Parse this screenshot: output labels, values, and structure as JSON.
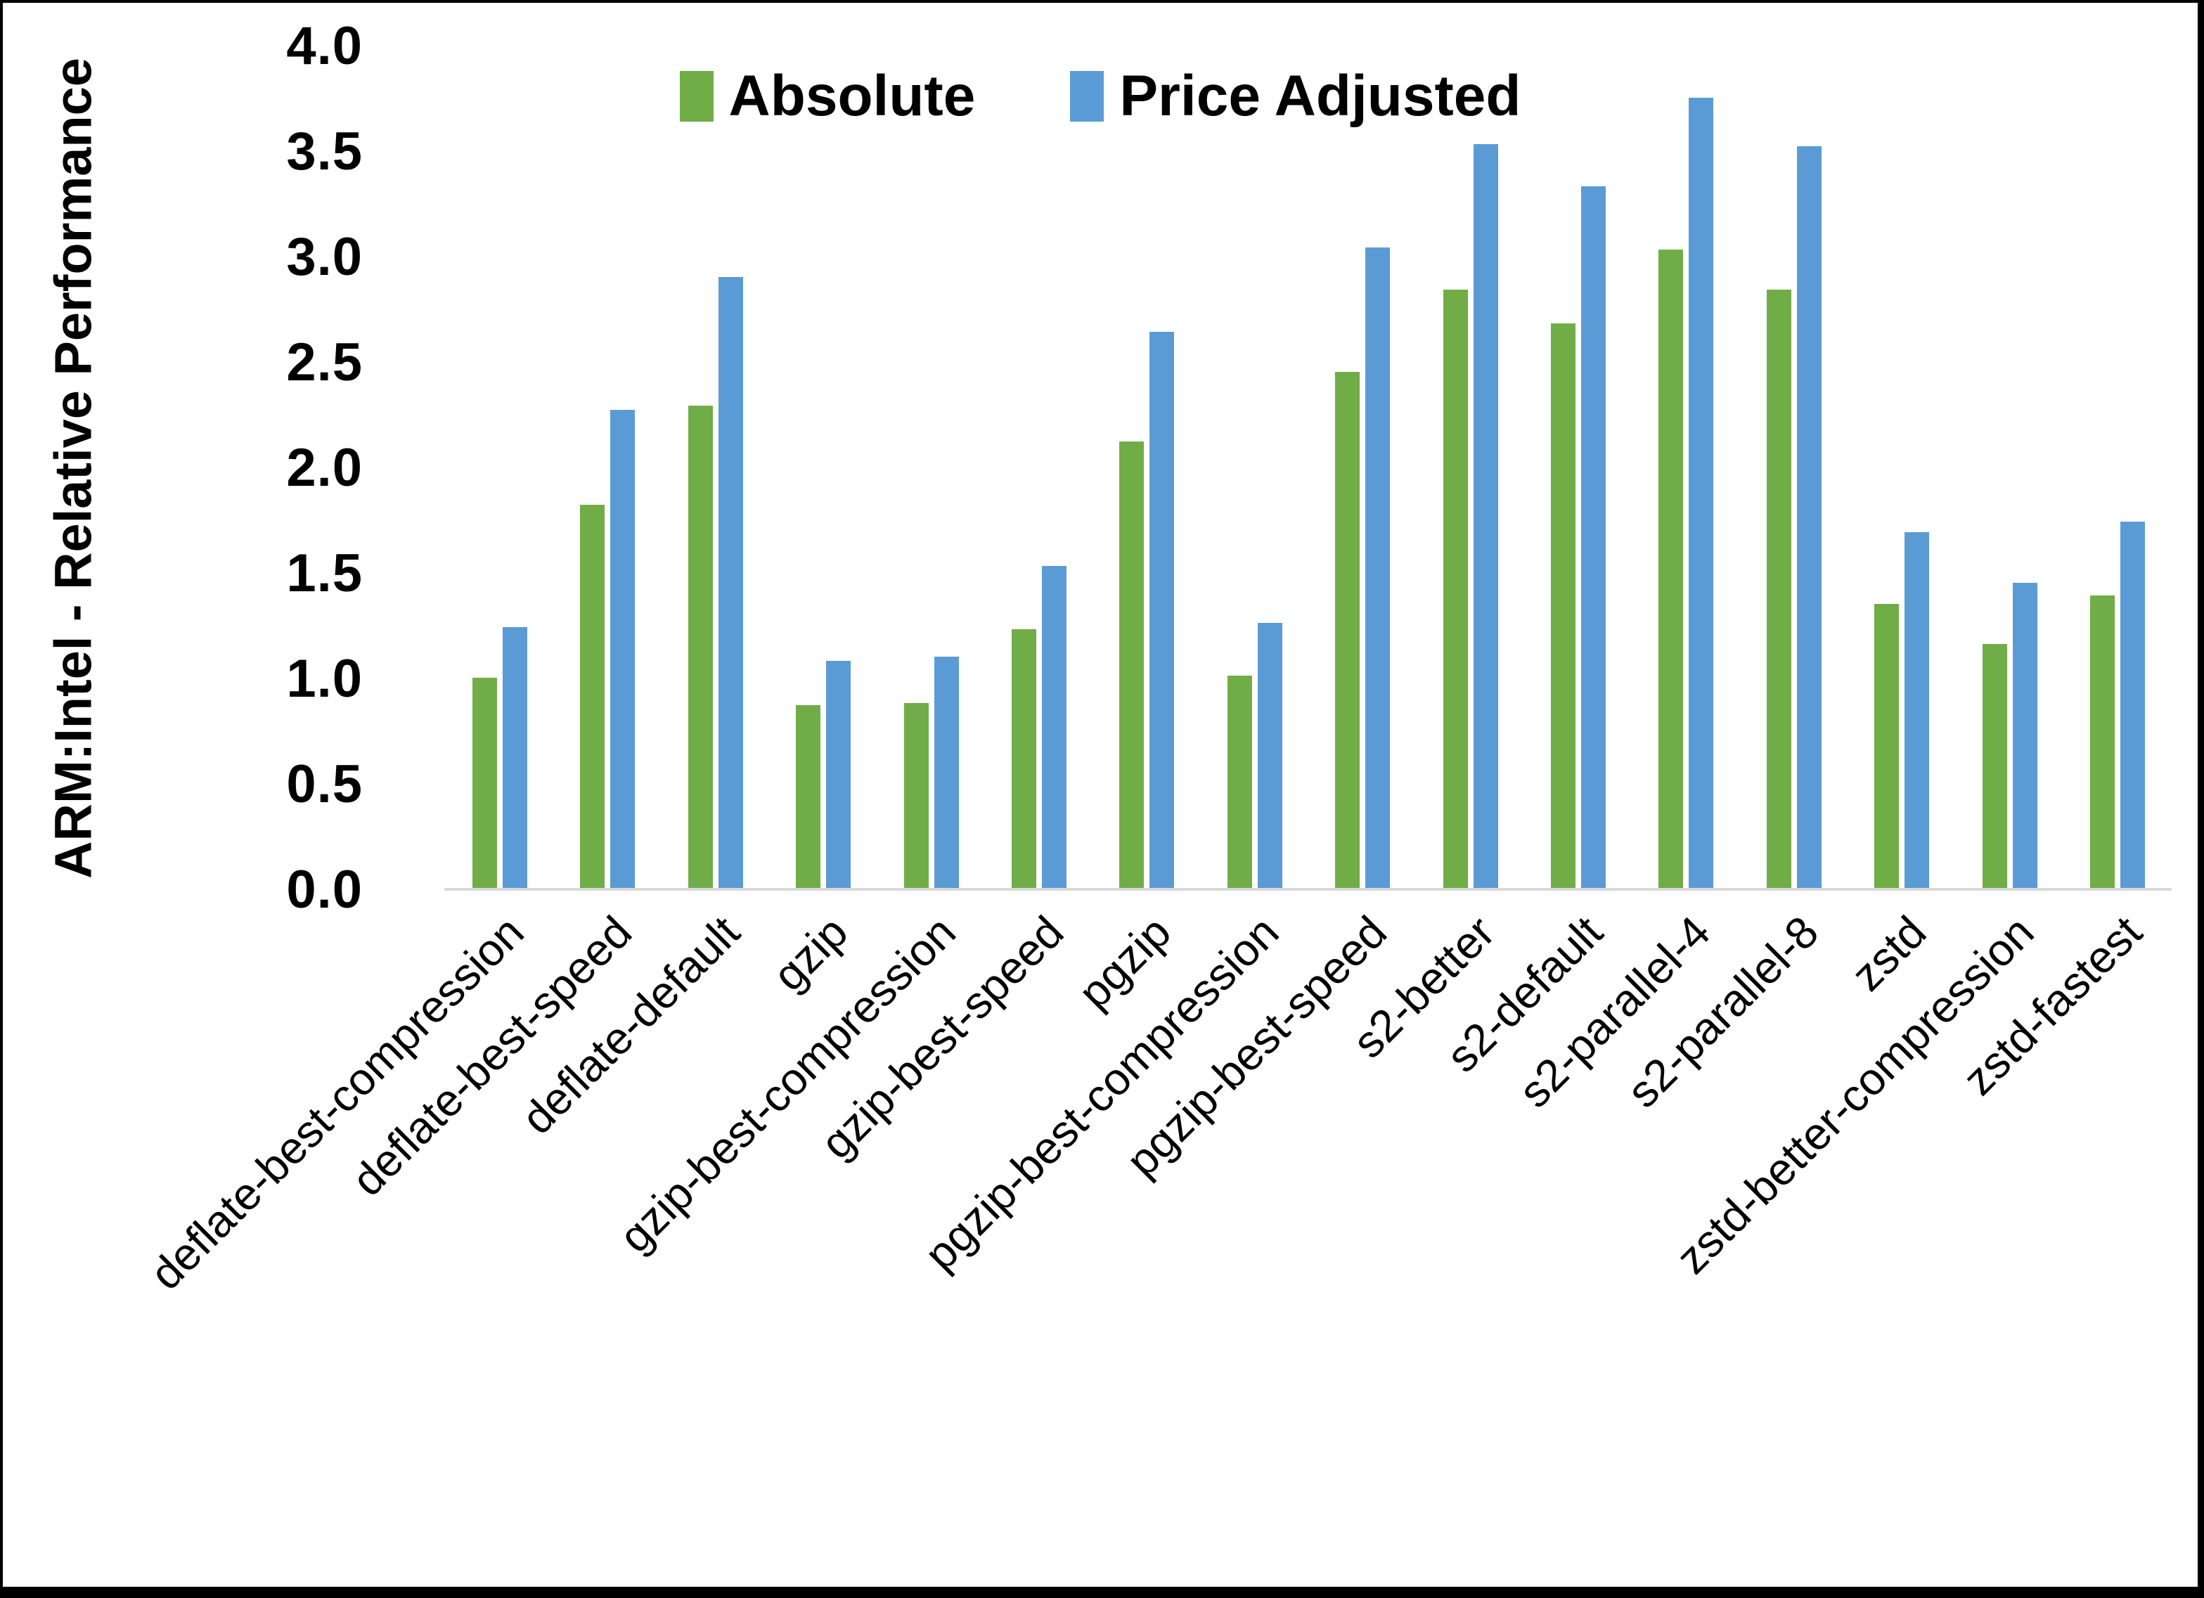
{
  "chart_data": {
    "type": "bar",
    "title": "",
    "xlabel": "",
    "ylabel": "ARM:Intel - Relative Performance",
    "ylim": [
      0.0,
      4.0
    ],
    "ytick_step": 0.5,
    "grid": false,
    "legend_position": "top-center",
    "axis_line_color": "#d9d9d9",
    "categories": [
      "deflate-best-compression",
      "deflate-best-speed",
      "deflate-default",
      "gzip",
      "gzip-best-compression",
      "gzip-best-speed",
      "pgzip",
      "pgzip-best-compression",
      "pgzip-best-speed",
      "s2-better",
      "s2-default",
      "s2-parallel-4",
      "s2-parallel-8",
      "zstd",
      "zstd-better-compression",
      "zstd-fastest"
    ],
    "series": [
      {
        "name": "Absolute",
        "color": "#70AD47",
        "values": [
          1.0,
          1.82,
          2.29,
          0.87,
          0.88,
          1.23,
          2.12,
          1.01,
          2.45,
          2.84,
          2.68,
          3.03,
          2.84,
          1.35,
          1.16,
          1.39
        ]
      },
      {
        "name": "Price Adjusted",
        "color": "#5B9BD5",
        "values": [
          1.24,
          2.27,
          2.9,
          1.08,
          1.1,
          1.53,
          2.64,
          1.26,
          3.04,
          3.53,
          3.33,
          3.75,
          3.52,
          1.69,
          1.45,
          1.74
        ]
      }
    ]
  }
}
